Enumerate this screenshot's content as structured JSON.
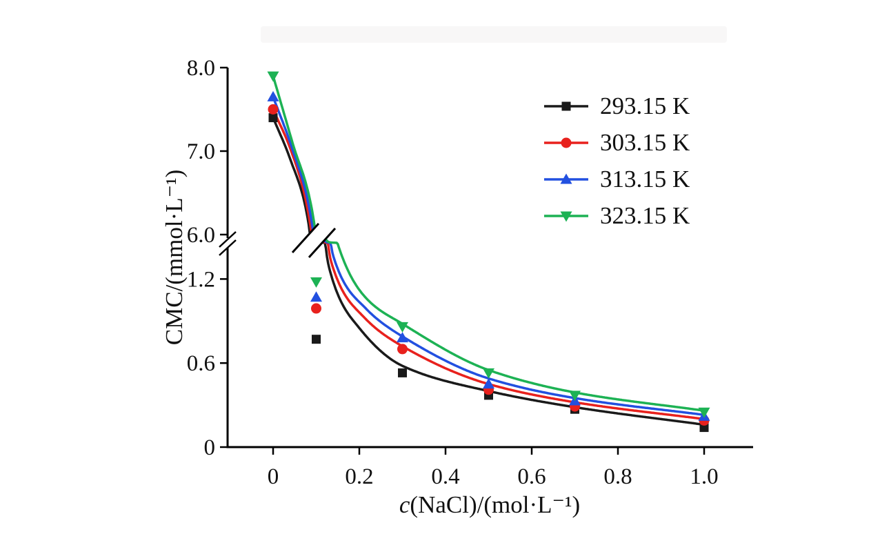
{
  "figure": {
    "background": "#ffffff"
  },
  "chart_data": {
    "type": "line",
    "title": "",
    "xlabel_italic": "c",
    "xlabel_rest": "(NaCl)/(mol·L⁻¹)",
    "ylabel": "CMC/(mmol·L⁻¹)",
    "x_ticks": [
      0,
      0.2,
      0.4,
      0.6,
      0.8,
      1.0
    ],
    "x_tick_labels": [
      "0",
      "0.2",
      "0.4",
      "0.6",
      "0.8",
      "1.0"
    ],
    "y_lower_ticks": [
      0,
      0.6,
      1.2
    ],
    "y_lower_tick_labels": [
      "0",
      "0.6",
      "1.2"
    ],
    "y_upper_ticks": [
      6.0,
      7.0,
      8.0
    ],
    "y_upper_tick_labels": [
      "6.0",
      "7.0",
      "8.0"
    ],
    "y_axis_break": {
      "from": 1.46,
      "to": 6.0
    },
    "xlim": [
      -0.1,
      1.11
    ],
    "grid": "off",
    "legend_position": "inside-top-right",
    "series": [
      {
        "name": "293.15 K",
        "color": "#1a1a1a",
        "marker": "square",
        "x": [
          0,
          0.1,
          0.3,
          0.5,
          0.7,
          1.0
        ],
        "y": [
          7.4,
          0.77,
          0.53,
          0.37,
          0.27,
          0.14
        ],
        "fit_x": [
          0,
          0.04,
          0.08,
          0.1,
          0.115,
          0.13,
          0.2,
          0.3,
          0.5,
          0.7,
          1.0
        ],
        "fit_y": [
          7.4,
          6.9,
          6.2,
          5.0,
          1.7,
          1.28,
          0.85,
          0.58,
          0.4,
          0.285,
          0.16
        ]
      },
      {
        "name": "303.15 K",
        "color": "#e8211d",
        "marker": "circle",
        "x": [
          0,
          0.1,
          0.3,
          0.5,
          0.7,
          1.0
        ],
        "y": [
          7.5,
          0.99,
          0.7,
          0.41,
          0.29,
          0.19
        ],
        "fit_x": [
          0,
          0.042,
          0.083,
          0.105,
          0.12,
          0.135,
          0.21,
          0.3,
          0.5,
          0.7,
          1.0
        ],
        "fit_y": [
          7.5,
          7.0,
          6.22,
          5.0,
          1.72,
          1.32,
          0.93,
          0.72,
          0.45,
          0.32,
          0.2
        ]
      },
      {
        "name": "313.15 K",
        "color": "#2250e0",
        "marker": "triangle-up",
        "x": [
          0,
          0.1,
          0.3,
          0.5,
          0.7,
          1.0
        ],
        "y": [
          7.65,
          1.07,
          0.78,
          0.45,
          0.33,
          0.22
        ],
        "fit_x": [
          0,
          0.043,
          0.086,
          0.11,
          0.125,
          0.14,
          0.215,
          0.3,
          0.5,
          0.7,
          1.0
        ],
        "fit_y": [
          7.65,
          7.05,
          6.26,
          5.0,
          1.76,
          1.36,
          0.99,
          0.79,
          0.49,
          0.35,
          0.23
        ]
      },
      {
        "name": "323.15 K",
        "color": "#1db254",
        "marker": "triangle-down",
        "x": [
          0,
          0.1,
          0.3,
          0.5,
          0.7,
          1.0
        ],
        "y": [
          7.9,
          1.18,
          0.86,
          0.53,
          0.37,
          0.25
        ],
        "fit_x": [
          0,
          0.045,
          0.09,
          0.115,
          0.13,
          0.15,
          0.22,
          0.3,
          0.5,
          0.7,
          1.0
        ],
        "fit_y": [
          7.9,
          7.1,
          6.3,
          5.0,
          1.8,
          1.45,
          1.05,
          0.88,
          0.55,
          0.39,
          0.26
        ]
      }
    ]
  }
}
